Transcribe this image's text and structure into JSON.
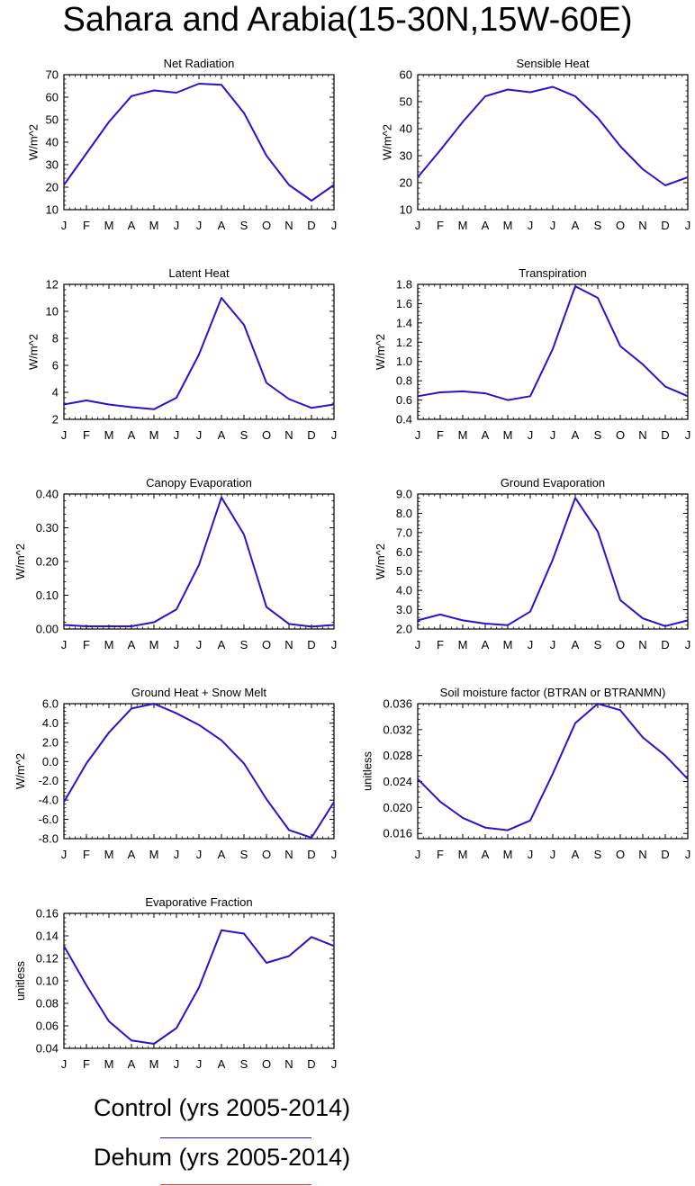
{
  "title": "Sahara and Arabia(15-30N,15W-60E)",
  "months": [
    "J",
    "F",
    "M",
    "A",
    "M",
    "J",
    "J",
    "A",
    "S",
    "O",
    "N",
    "D",
    "J"
  ],
  "colors": {
    "control": "#2b12cf",
    "dehum": "#ff2a1a"
  },
  "legend": [
    {
      "label": "Control (yrs 2005-2014)",
      "color": "#2b12cf"
    },
    {
      "label": "Dehum (yrs 2005-2014)",
      "color": "#ff2a1a"
    }
  ],
  "chart_data": [
    {
      "type": "line",
      "title": "Net Radiation",
      "ylabel": "W/m^2",
      "ylim": [
        10,
        70
      ],
      "yticks": [
        "10",
        "20",
        "30",
        "40",
        "50",
        "60",
        "70"
      ],
      "series": [
        {
          "name": "Control",
          "values": [
            21,
            35,
            49,
            60.5,
            63,
            62,
            66,
            65.5,
            53,
            34,
            21,
            14,
            21
          ]
        }
      ]
    },
    {
      "type": "line",
      "title": "Sensible Heat",
      "ylabel": "W/m^2",
      "ylim": [
        10,
        60
      ],
      "yticks": [
        "10",
        "20",
        "30",
        "40",
        "50",
        "60"
      ],
      "series": [
        {
          "name": "Control",
          "values": [
            22,
            32,
            42.5,
            52,
            54.5,
            53.5,
            55.5,
            52,
            44,
            33.5,
            25,
            19,
            22
          ]
        }
      ]
    },
    {
      "type": "line",
      "title": "Latent Heat",
      "ylabel": "W/m^2",
      "ylim": [
        2,
        12
      ],
      "yticks": [
        "2",
        "4",
        "6",
        "8",
        "10",
        "12"
      ],
      "series": [
        {
          "name": "Control",
          "values": [
            3.1,
            3.4,
            3.1,
            2.9,
            2.75,
            3.6,
            6.8,
            11,
            9,
            4.7,
            3.5,
            2.85,
            3.1
          ]
        }
      ]
    },
    {
      "type": "line",
      "title": "Transpiration",
      "ylabel": "W/m^2",
      "ylim": [
        0.4,
        1.8
      ],
      "yticks": [
        "0.4",
        "0.6",
        "0.8",
        "1.0",
        "1.2",
        "1.4",
        "1.6",
        "1.8"
      ],
      "series": [
        {
          "name": "Control",
          "values": [
            0.64,
            0.68,
            0.69,
            0.67,
            0.6,
            0.64,
            1.13,
            1.78,
            1.66,
            1.16,
            0.97,
            0.74,
            0.64
          ]
        }
      ]
    },
    {
      "type": "line",
      "title": "Canopy Evaporation",
      "ylabel": "W/m^2",
      "ylim": [
        0,
        0.4
      ],
      "yticks": [
        "0.00",
        "0.10",
        "0.20",
        "0.30",
        "0.40"
      ],
      "series": [
        {
          "name": "Control",
          "values": [
            0.012,
            0.008,
            0.008,
            0.008,
            0.02,
            0.058,
            0.19,
            0.39,
            0.28,
            0.065,
            0.015,
            0.007,
            0.012
          ]
        }
      ]
    },
    {
      "type": "line",
      "title": "Ground Evaporation",
      "ylabel": "W/m^2",
      "ylim": [
        2,
        9
      ],
      "yticks": [
        "2.0",
        "3.0",
        "4.0",
        "5.0",
        "6.0",
        "7.0",
        "8.0",
        "9.0"
      ],
      "series": [
        {
          "name": "Control",
          "values": [
            2.45,
            2.75,
            2.45,
            2.28,
            2.2,
            2.9,
            5.6,
            8.8,
            7.05,
            3.5,
            2.55,
            2.15,
            2.45
          ]
        }
      ]
    },
    {
      "type": "line",
      "title": "Ground Heat + Snow Melt",
      "ylabel": "W/m^2",
      "ylim": [
        -8,
        6
      ],
      "yticks": [
        "-8.0",
        "-6.0",
        "-4.0",
        "-2.0",
        "0.0",
        "2.0",
        "4.0",
        "6.0"
      ],
      "series": [
        {
          "name": "Control",
          "values": [
            -4.2,
            -0.2,
            3.0,
            5.5,
            6.0,
            5.0,
            3.8,
            2.2,
            -0.2,
            -3.9,
            -7.1,
            -7.9,
            -4.2
          ]
        }
      ]
    },
    {
      "type": "line",
      "title": "Soil moisture factor (BTRAN or BTRANMN)",
      "ylabel": "unitless",
      "ylim": [
        0.0152,
        0.036
      ],
      "yticks": [
        "0.016",
        "0.020",
        "0.024",
        "0.028",
        "0.032",
        "0.036"
      ],
      "series": [
        {
          "name": "Control",
          "values": [
            0.0244,
            0.0209,
            0.0184,
            0.0169,
            0.0165,
            0.018,
            0.0252,
            0.033,
            0.036,
            0.035,
            0.0308,
            0.028,
            0.0244
          ]
        }
      ]
    },
    {
      "type": "line",
      "title": "Evaporative Fraction",
      "ylabel": "unitless",
      "ylim": [
        0.04,
        0.16
      ],
      "yticks": [
        "0.04",
        "0.06",
        "0.08",
        "0.10",
        "0.12",
        "0.14",
        "0.16"
      ],
      "series": [
        {
          "name": "Control",
          "values": [
            0.131,
            0.096,
            0.064,
            0.047,
            0.044,
            0.058,
            0.094,
            0.145,
            0.142,
            0.116,
            0.122,
            0.139,
            0.131
          ]
        }
      ]
    }
  ]
}
